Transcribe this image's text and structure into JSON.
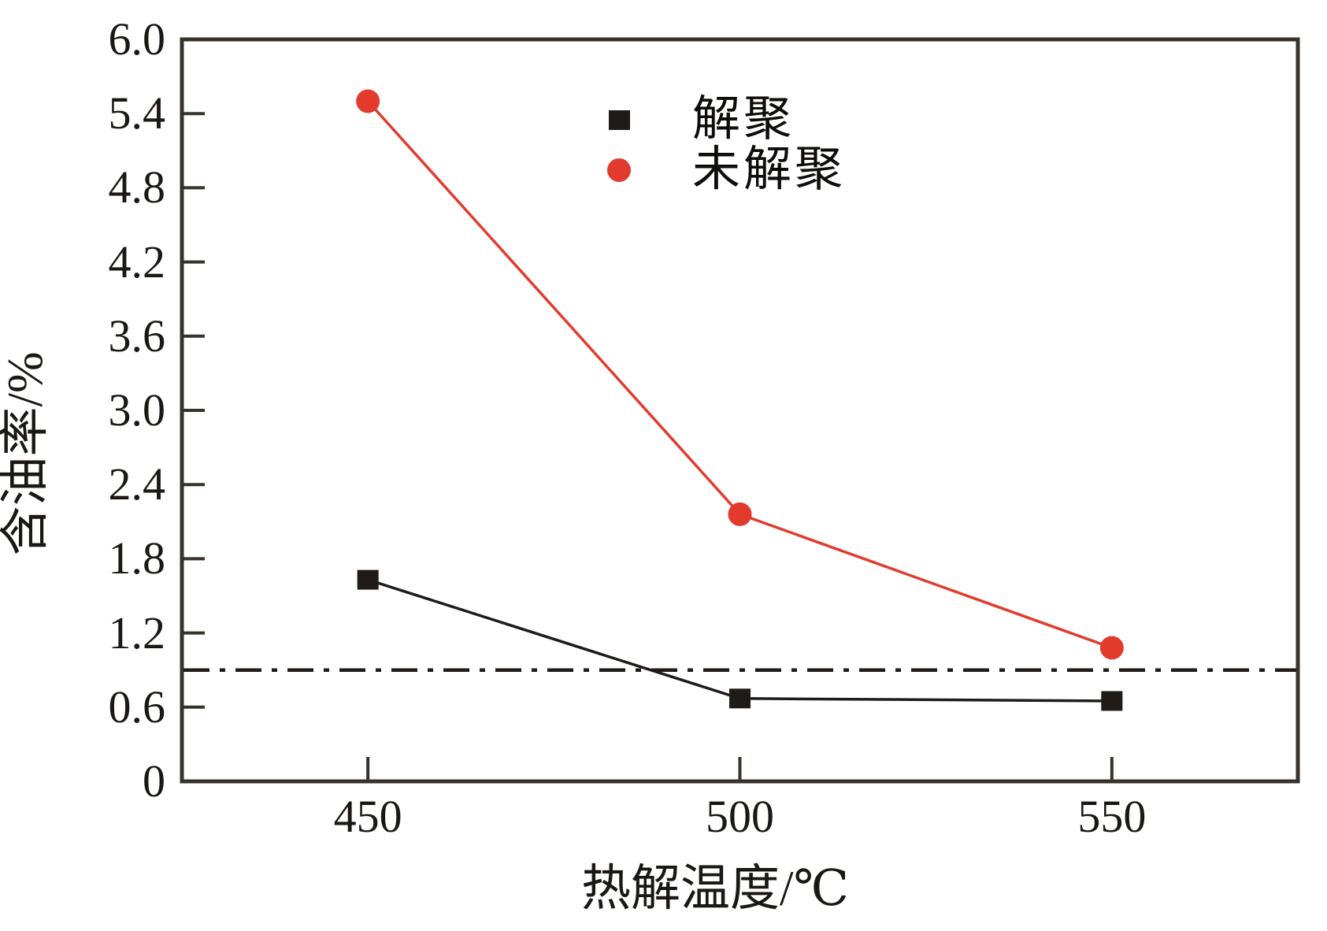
{
  "figure": {
    "background": "#ffffff"
  },
  "colors": {
    "axis": "#38322c",
    "tick_text": "#1a1714",
    "black_series": "#1f1b18",
    "red_series": "#e23b2e",
    "reference_line": "#1f1b18"
  },
  "axes": {
    "y_label": "含油率/%",
    "x_label": "热解温度/℃",
    "y_ticks": [
      "0",
      "0.6",
      "1.2",
      "1.8",
      "2.4",
      "3.0",
      "3.6",
      "4.2",
      "4.8",
      "5.4",
      "6.0"
    ],
    "x_ticks": [
      "450",
      "500",
      "550"
    ]
  },
  "legend": [
    {
      "label": "解聚",
      "marker": "square",
      "color": "#1f1b18"
    },
    {
      "label": "未解聚",
      "marker": "circle",
      "color": "#e23b2e"
    }
  ],
  "chart_data": {
    "type": "line",
    "x": [
      450,
      500,
      550
    ],
    "series": [
      {
        "name": "解聚",
        "marker": "square",
        "color": "#1f1b18",
        "values": [
          1.63,
          0.67,
          0.65
        ]
      },
      {
        "name": "未解聚",
        "marker": "circle",
        "color": "#e23b2e",
        "values": [
          5.5,
          2.16,
          1.08
        ]
      }
    ],
    "reference_line": {
      "y": 0.9,
      "style": "dash-dot",
      "color": "#1f1b18"
    },
    "title": "",
    "xlabel": "热解温度/℃",
    "ylabel": "含油率/%",
    "xlim": [
      425,
      575
    ],
    "ylim": [
      0,
      6.0
    ],
    "y_tick_step": 0.6,
    "grid": false,
    "legend_position": "top-center-inside"
  }
}
